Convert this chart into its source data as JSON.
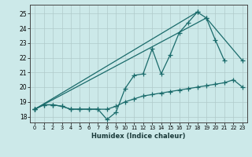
{
  "xlabel": "Humidex (Indice chaleur)",
  "bg_color": "#cce9e9",
  "line_color": "#1a6b6b",
  "xlim": [
    -0.5,
    23.5
  ],
  "ylim": [
    17.6,
    25.6
  ],
  "xtick_labels": [
    "0",
    "1",
    "2",
    "3",
    "4",
    "5",
    "6",
    "7",
    "8",
    "9",
    "10",
    "11",
    "12",
    "13",
    "14",
    "15",
    "16",
    "17",
    "18",
    "19",
    "20",
    "21",
    "22",
    "23"
  ],
  "ytick_vals": [
    18,
    19,
    20,
    21,
    22,
    23,
    24,
    25
  ],
  "series1_y": [
    18.5,
    18.8,
    18.8,
    18.7,
    18.5,
    18.5,
    18.5,
    18.5,
    17.8,
    18.3,
    19.9,
    20.8,
    20.9,
    22.6,
    20.9,
    22.2,
    23.7,
    24.4,
    25.1,
    24.7,
    23.2,
    21.8,
    null,
    null
  ],
  "series2_y": [
    18.5,
    18.8,
    18.8,
    18.7,
    18.5,
    18.5,
    18.5,
    18.5,
    18.5,
    18.7,
    19.0,
    19.2,
    19.4,
    19.5,
    19.6,
    19.7,
    19.8,
    19.9,
    20.0,
    20.1,
    20.2,
    20.3,
    20.5,
    20.0
  ],
  "line3_x": [
    0,
    18
  ],
  "line3_y": [
    18.5,
    25.1
  ],
  "line4_x": [
    0,
    19,
    23
  ],
  "line4_y": [
    18.5,
    24.7,
    21.8
  ]
}
